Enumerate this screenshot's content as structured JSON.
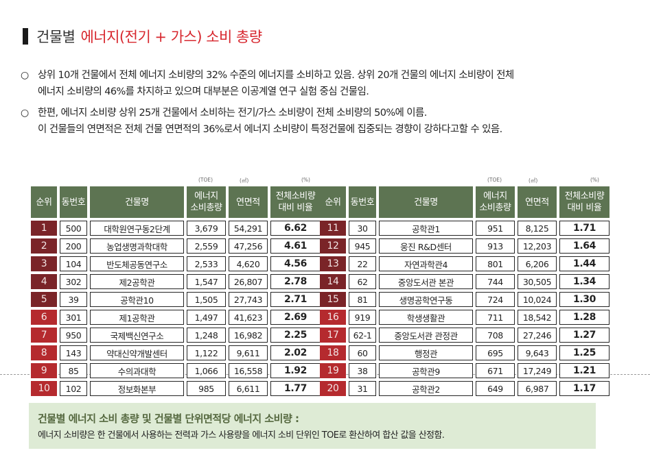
{
  "title": {
    "prefix": "건물별",
    "highlight": "에너지(전기 + 가스) 소비 총량"
  },
  "bullets": [
    {
      "mark": "○",
      "lines": [
        "상위 10개 건물에서 전체 에너지 소비량의 32% 수준의 에너지를 소비하고 있음. 상위 20개 건물의 에너지 소비량이 전체",
        "에너지 소비량의 46%를 차지하고 있으며 대부분은 이공계열 연구 실험 중심 건물임."
      ]
    },
    {
      "mark": "○",
      "lines": [
        "한편, 에너지 소비량 상위 25개 건물에서 소비하는 전기/가스 소비량이 전체 소비량의 50%에 이름.",
        "이 건물들의 연면적은 전체 건물 연면적의 36%로서 에너지 소비량이  특정건물에 집중되는 경향이 강하다고할  수 있음."
      ]
    }
  ],
  "table": {
    "units": {
      "energy": "(TOE)",
      "area": "(㎡)",
      "ratio": "(%)"
    },
    "headers": {
      "rank": "순위",
      "building_no": "동번호",
      "name": "건물명",
      "energy_1": "에너지",
      "energy_2": "소비총량",
      "area": "연면적",
      "ratio_1": "전체소비량",
      "ratio_2": "대비 비율"
    },
    "colors": {
      "header": "#5d7452",
      "rank_dark": "#7a2428",
      "rank_red": "#b52a2e"
    },
    "left": [
      {
        "rank": "1",
        "no": "500",
        "name": "대학원연구동2단계",
        "energy": "3,679",
        "area": "54,291",
        "ratio": "6.62"
      },
      {
        "rank": "2",
        "no": "200",
        "name": "농업생명과학대학",
        "energy": "2,559",
        "area": "47,256",
        "ratio": "4.61"
      },
      {
        "rank": "3",
        "no": "104",
        "name": "반도체공동연구소",
        "energy": "2,533",
        "area": "4,620",
        "ratio": "4.56"
      },
      {
        "rank": "4",
        "no": "302",
        "name": "제2공학관",
        "energy": "1,547",
        "area": "26,807",
        "ratio": "2.78"
      },
      {
        "rank": "5",
        "no": "39",
        "name": "공학관10",
        "energy": "1,505",
        "area": "27,743",
        "ratio": "2.71"
      },
      {
        "rank": "6",
        "no": "301",
        "name": "제1공학관",
        "energy": "1,497",
        "area": "41,623",
        "ratio": "2.69"
      },
      {
        "rank": "7",
        "no": "950",
        "name": "국제백신연구소",
        "energy": "1,248",
        "area": "16,982",
        "ratio": "2.25"
      },
      {
        "rank": "8",
        "no": "143",
        "name": "약대신약개발센터",
        "energy": "1,122",
        "area": "9,611",
        "ratio": "2.02"
      },
      {
        "rank": "9",
        "no": "85",
        "name": "수의과대학",
        "energy": "1,066",
        "area": "16,558",
        "ratio": "1.92"
      },
      {
        "rank": "10",
        "no": "102",
        "name": "정보화본부",
        "energy": "985",
        "area": "6,611",
        "ratio": "1.77"
      }
    ],
    "right": [
      {
        "rank": "11",
        "no": "30",
        "name": "공학관1",
        "energy": "951",
        "area": "8,125",
        "ratio": "1.71"
      },
      {
        "rank": "12",
        "no": "945",
        "name": "웅진 R&D센터",
        "energy": "913",
        "area": "12,203",
        "ratio": "1.64"
      },
      {
        "rank": "13",
        "no": "22",
        "name": "자연과학관4",
        "energy": "801",
        "area": "6,206",
        "ratio": "1.44"
      },
      {
        "rank": "14",
        "no": "62",
        "name": "중앙도서관 본관",
        "energy": "744",
        "area": "30,505",
        "ratio": "1.34"
      },
      {
        "rank": "15",
        "no": "81",
        "name": "생명공학연구동",
        "energy": "724",
        "area": "10,024",
        "ratio": "1.30"
      },
      {
        "rank": "16",
        "no": "919",
        "name": "학생생활관",
        "energy": "711",
        "area": "18,542",
        "ratio": "1.28"
      },
      {
        "rank": "17",
        "no": "62-1",
        "name": "중앙도서관 관정관",
        "energy": "708",
        "area": "27,246",
        "ratio": "1.27"
      },
      {
        "rank": "18",
        "no": "60",
        "name": "행정관",
        "energy": "695",
        "area": "9,643",
        "ratio": "1.25"
      },
      {
        "rank": "19",
        "no": "38",
        "name": "공학관9",
        "energy": "671",
        "area": "17,249",
        "ratio": "1.21"
      },
      {
        "rank": "20",
        "no": "31",
        "name": "공학관2",
        "energy": "649",
        "area": "6,987",
        "ratio": "1.17"
      }
    ]
  },
  "note": {
    "heading": "건물별 에너지 소비 총량 및 건물별 단위면적당 에너지 소비량 :",
    "body": "에너지 소비량은 한 건물에서 사용하는 전력과 가스 사용량을 에너지 소비 단위인 TOE로 환산하여 합산 값을 산정함."
  }
}
